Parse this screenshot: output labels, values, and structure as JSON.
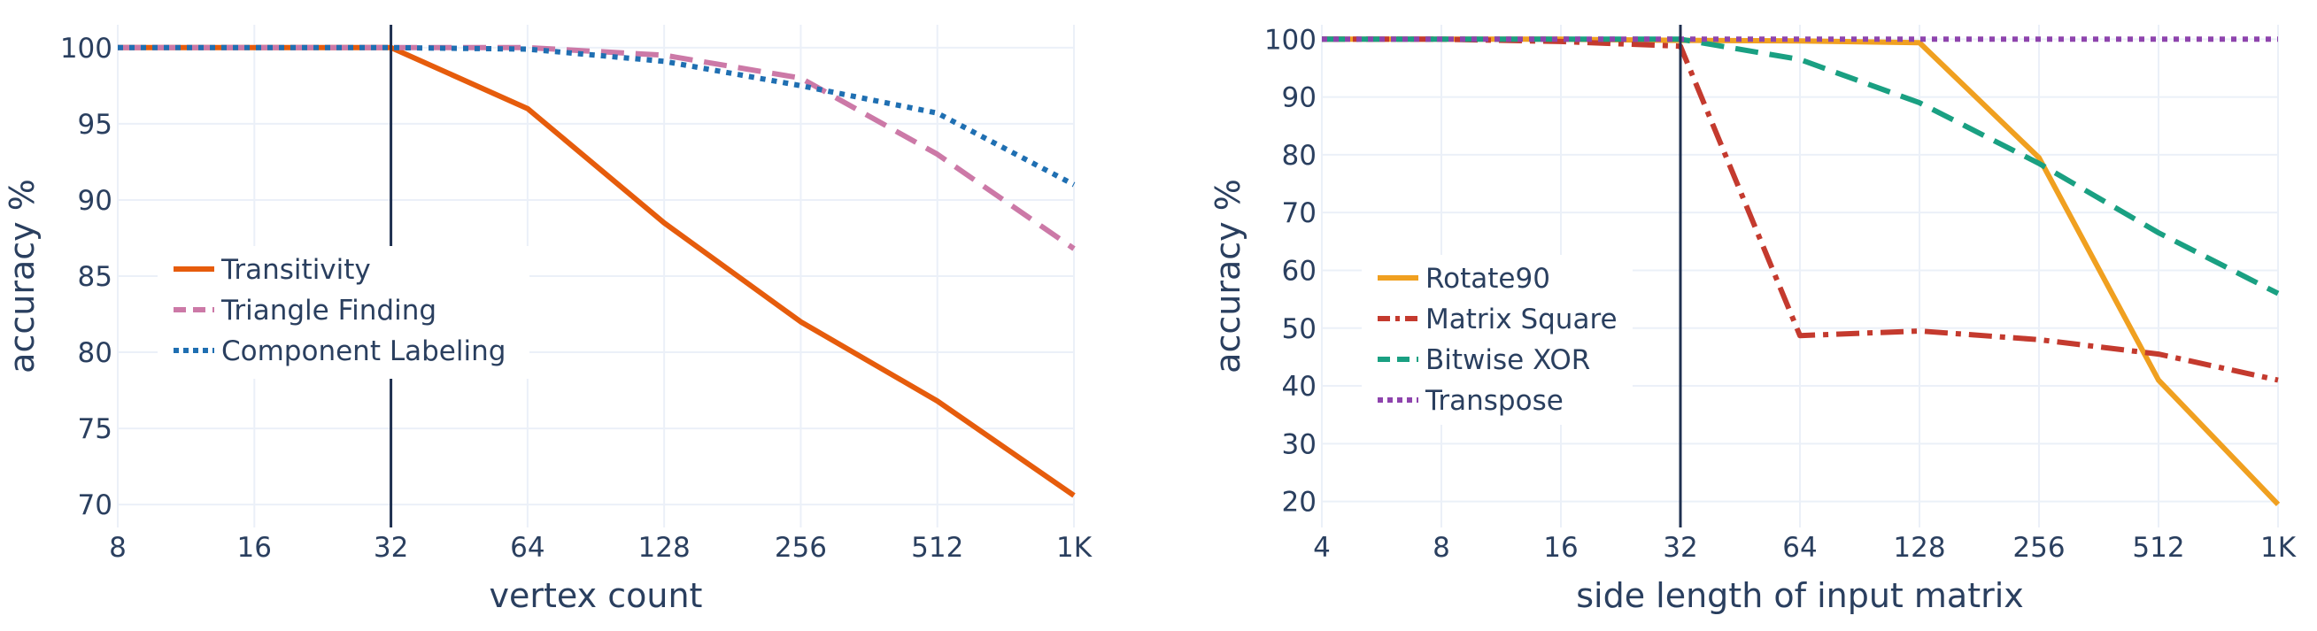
{
  "chart_data": [
    {
      "type": "line",
      "xlabel": "vertex count",
      "ylabel": "accuracy %",
      "x_scale": "log2",
      "categories": [
        "8",
        "16",
        "32",
        "64",
        "128",
        "256",
        "512",
        "1K"
      ],
      "x": [
        8,
        16,
        32,
        64,
        128,
        256,
        512,
        1024
      ],
      "ylim": [
        68.5,
        101.5
      ],
      "yticks": [
        70,
        75,
        80,
        85,
        90,
        95,
        100
      ],
      "grid": true,
      "legend_position": "center-left",
      "vertical_marker_x": 32,
      "series": [
        {
          "name": "Transitivity",
          "style": "solid",
          "color": "#e65c0c",
          "values": [
            100,
            100,
            100,
            96,
            88.5,
            82,
            76.8,
            70.6
          ]
        },
        {
          "name": "Triangle Finding",
          "style": "dash",
          "color": "#cc79a7",
          "values": [
            100,
            100,
            100,
            100,
            99.5,
            98,
            93,
            86.8
          ]
        },
        {
          "name": "Component Labeling",
          "style": "dot",
          "color": "#1f6fb2",
          "values": [
            100,
            100,
            100,
            99.9,
            99.1,
            97.5,
            95.7,
            91
          ]
        }
      ]
    },
    {
      "type": "line",
      "xlabel": "side length of input matrix",
      "ylabel": "accuracy %",
      "x_scale": "log2",
      "categories": [
        "4",
        "8",
        "16",
        "32",
        "64",
        "128",
        "256",
        "512",
        "1K"
      ],
      "x": [
        4,
        8,
        16,
        32,
        64,
        128,
        256,
        512,
        1024
      ],
      "ylim": [
        15.5,
        102.5
      ],
      "yticks": [
        20,
        30,
        40,
        50,
        60,
        70,
        80,
        90,
        100
      ],
      "grid": true,
      "legend_position": "center-left",
      "vertical_marker_x": 32,
      "series": [
        {
          "name": "Rotate90",
          "style": "solid",
          "color": "#f0a020",
          "values": [
            100,
            100,
            100,
            99.8,
            99.7,
            99.4,
            79.5,
            41,
            19.5
          ]
        },
        {
          "name": "Matrix Square",
          "style": "dashdot",
          "color": "#c43a2e",
          "values": [
            100,
            100,
            99.6,
            98.8,
            48.7,
            49.5,
            48,
            45.5,
            41
          ]
        },
        {
          "name": "Bitwise XOR",
          "style": "dash",
          "color": "#1aa082",
          "values": [
            100,
            100,
            100,
            100,
            96.5,
            89,
            78.5,
            66.5,
            56
          ]
        },
        {
          "name": "Transpose",
          "style": "dot",
          "color": "#8e44ad",
          "values": [
            100,
            100,
            100,
            100,
            100,
            100,
            100,
            100,
            100
          ]
        }
      ]
    }
  ]
}
